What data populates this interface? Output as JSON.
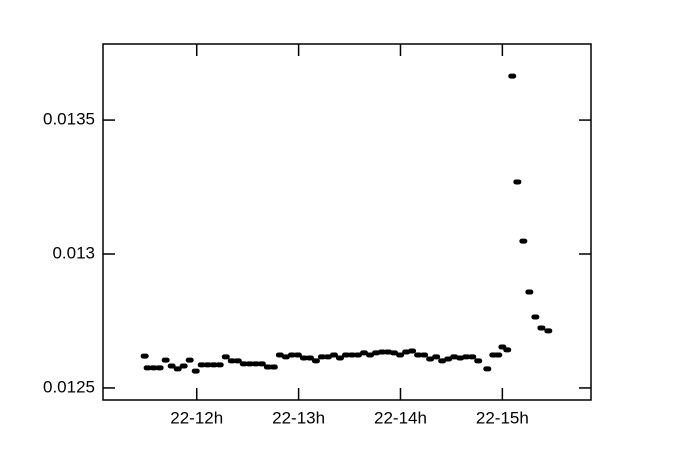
{
  "chart_data": {
    "type": "scatter",
    "color": "#000000",
    "x": [
      11.489,
      11.518,
      11.577,
      11.636,
      11.695,
      11.754,
      11.813,
      11.872,
      11.931,
      11.99,
      12.049,
      12.108,
      12.167,
      12.226,
      12.285,
      12.344,
      12.403,
      12.462,
      12.521,
      12.58,
      12.639,
      12.698,
      12.757,
      12.816,
      12.875,
      12.934,
      12.993,
      13.052,
      13.111,
      13.17,
      13.229,
      13.288,
      13.347,
      13.406,
      13.465,
      13.524,
      13.583,
      13.642,
      13.701,
      13.76,
      13.819,
      13.878,
      13.937,
      13.996,
      14.055,
      14.114,
      14.173,
      14.232,
      14.291,
      14.35,
      14.409,
      14.468,
      14.527,
      14.586,
      14.645,
      14.704,
      14.763,
      14.852,
      14.911,
      14.96,
      15.0,
      15.048,
      15.097,
      15.147,
      15.206,
      15.265,
      15.324,
      15.383,
      15.451
    ],
    "values": [
      0.012619,
      0.012575,
      0.012575,
      0.012575,
      0.012604,
      0.012582,
      0.012571,
      0.012582,
      0.012604,
      0.012563,
      0.012586,
      0.012586,
      0.012586,
      0.012586,
      0.012616,
      0.012601,
      0.012601,
      0.01259,
      0.01259,
      0.01259,
      0.01259,
      0.012578,
      0.012578,
      0.012623,
      0.012616,
      0.012623,
      0.012623,
      0.012612,
      0.012612,
      0.012601,
      0.012616,
      0.012616,
      0.012623,
      0.012612,
      0.012623,
      0.012623,
      0.012623,
      0.012631,
      0.012623,
      0.012631,
      0.012634,
      0.012634,
      0.012631,
      0.012623,
      0.012634,
      0.012638,
      0.012623,
      0.012623,
      0.012608,
      0.012616,
      0.012601,
      0.012608,
      0.012616,
      0.012612,
      0.012616,
      0.012616,
      0.012601,
      0.012571,
      0.012623,
      0.012623,
      0.012653,
      0.012642,
      0.013664,
      0.013269,
      0.013048,
      0.012858,
      0.012765,
      0.012724,
      0.012713
    ],
    "xlim": [
      11.08,
      15.87
    ],
    "xticks": [
      {
        "value": 12,
        "label": "22-12h"
      },
      {
        "value": 13,
        "label": "22-13h"
      },
      {
        "value": 14,
        "label": "22-14h"
      },
      {
        "value": 15,
        "label": "22-15h"
      }
    ],
    "ylim": [
      0.012455,
      0.013784
    ],
    "yticks": [
      0.0125,
      0.013,
      0.0135
    ]
  }
}
